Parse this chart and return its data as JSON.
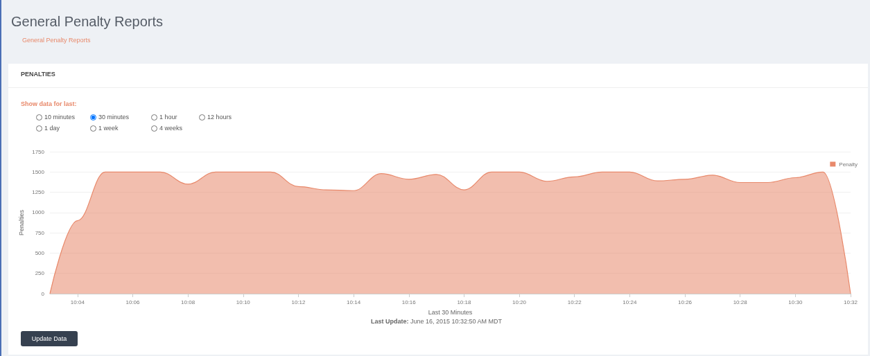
{
  "chart_data": {
    "type": "area",
    "title": "General Penalty Reports",
    "xlabel": "Last 30 Minutes",
    "ylabel": "Penalties",
    "annotations": [
      "General Penalty Reports",
      "PENALTIES",
      "Show data for last:",
      "10 minutes",
      "30 minutes",
      "1 hour",
      "12 hours",
      "1 day",
      "1 week",
      "4 weeks",
      "Last Update: June 16, 2015 10:32:50 AM MDT",
      "Update Data"
    ],
    "x": [
      "2015-06-16T10:03",
      "2015-06-16T10:04",
      "2015-06-16T10:05",
      "2015-06-16T10:06",
      "2015-06-16T10:07",
      "2015-06-16T10:08",
      "2015-06-16T10:09",
      "2015-06-16T10:10",
      "2015-06-16T10:11",
      "2015-06-16T10:12",
      "2015-06-16T10:13",
      "2015-06-16T10:14",
      "2015-06-16T10:15",
      "2015-06-16T10:16",
      "2015-06-16T10:17",
      "2015-06-16T10:18",
      "2015-06-16T10:19",
      "2015-06-16T10:20",
      "2015-06-16T10:21",
      "2015-06-16T10:22",
      "2015-06-16T10:23",
      "2015-06-16T10:24",
      "2015-06-16T10:25",
      "2015-06-16T10:26",
      "2015-06-16T10:27",
      "2015-06-16T10:28",
      "2015-06-16T10:29",
      "2015-06-16T10:30",
      "2015-06-16T10:31",
      "2015-06-16T10:32"
    ],
    "series": [
      {
        "name": "Penalty",
        "color": "#e8896b",
        "values": [
          0,
          900,
          1500,
          1500,
          1500,
          1350,
          1500,
          1500,
          1500,
          1320,
          1280,
          1270,
          1480,
          1410,
          1470,
          1280,
          1500,
          1500,
          1385,
          1440,
          1500,
          1500,
          1390,
          1410,
          1460,
          1370,
          1370,
          1430,
          1500,
          0
        ]
      }
    ],
    "xlim": [
      "2015-06-16T10:03",
      "2015-06-16T10:32"
    ],
    "xticks": [
      {
        "value": "2015-06-16T10:04",
        "label": "10:04"
      },
      {
        "value": "2015-06-16T10:06",
        "label": "10:06"
      },
      {
        "value": "2015-06-16T10:08",
        "label": "10:08"
      },
      {
        "value": "2015-06-16T10:10",
        "label": "10:10"
      },
      {
        "value": "2015-06-16T10:12",
        "label": "10:12"
      },
      {
        "value": "2015-06-16T10:14",
        "label": "10:14"
      },
      {
        "value": "2015-06-16T10:16",
        "label": "10:16"
      },
      {
        "value": "2015-06-16T10:18",
        "label": "10:18"
      },
      {
        "value": "2015-06-16T10:20",
        "label": "10:20"
      },
      {
        "value": "2015-06-16T10:22",
        "label": "10:22"
      },
      {
        "value": "2015-06-16T10:24",
        "label": "10:24"
      },
      {
        "value": "2015-06-16T10:26",
        "label": "10:26"
      },
      {
        "value": "2015-06-16T10:28",
        "label": "10:28"
      },
      {
        "value": "2015-06-16T10:30",
        "label": "10:30"
      },
      {
        "value": "2015-06-16T10:32",
        "label": "10:32"
      }
    ],
    "ylim": [
      0,
      1750
    ],
    "yticks": [
      0,
      250,
      500,
      750,
      1000,
      1250,
      1500,
      1750
    ],
    "grid": "y",
    "legend": "top right",
    "marker": "none",
    "line_style": "solid"
  }
}
